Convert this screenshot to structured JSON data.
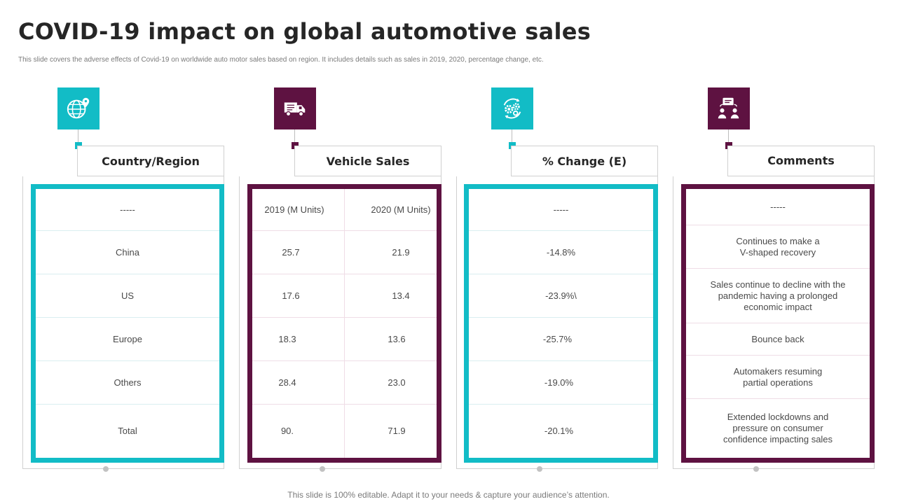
{
  "title": "COVID-19 impact on global automotive sales",
  "subtitle": "This slide covers the adverse effects of Covid-19 on worldwide auto motor sales based on region. It includes details such as sales in 2019, 2020, percentage change, etc.",
  "footer": "This slide is 100% editable. Adapt it to your needs & capture your audience’s attention.",
  "colors": {
    "cyan": "#12BCC6",
    "plum": "#5E1241",
    "border_gray": "#D0D0D0"
  },
  "columns": {
    "country": {
      "header": "Country/Region",
      "icon": "globe-icon",
      "rows": [
        "-----",
        "China",
        "US",
        "Europe",
        "Others",
        "Total"
      ]
    },
    "sales": {
      "header": "Vehicle Sales",
      "icon": "delivery-truck-icon",
      "sub_headers": [
        "2019 (M Units)",
        "2020 (M Units)"
      ],
      "rows": [
        [
          "25.7",
          "21.9"
        ],
        [
          "17.6",
          "13.4"
        ],
        [
          "18.3",
          "13.6"
        ],
        [
          "28.4",
          "23.0"
        ],
        [
          "90.",
          "71.9"
        ]
      ]
    },
    "change": {
      "header": "% Change (E)",
      "icon": "gears-cycle-icon",
      "rows": [
        "-----",
        "-14.8%",
        "-23.9%\\",
        "-25.7%",
        "-19.0%",
        "-20.1%"
      ]
    },
    "comments": {
      "header": "Comments",
      "icon": "team-discussion-icon",
      "rows": [
        "-----",
        [
          "Continues to make a",
          "V-shaped recovery"
        ],
        [
          "Sales continue to decline with the",
          "pandemic having  a prolonged",
          "economic impact"
        ],
        [
          "Bounce back"
        ],
        [
          "Automakers resuming",
          "partial operations"
        ],
        [
          "Extended lockdowns and",
          "pressure on consumer",
          "confidence  impacting sales"
        ]
      ]
    }
  }
}
